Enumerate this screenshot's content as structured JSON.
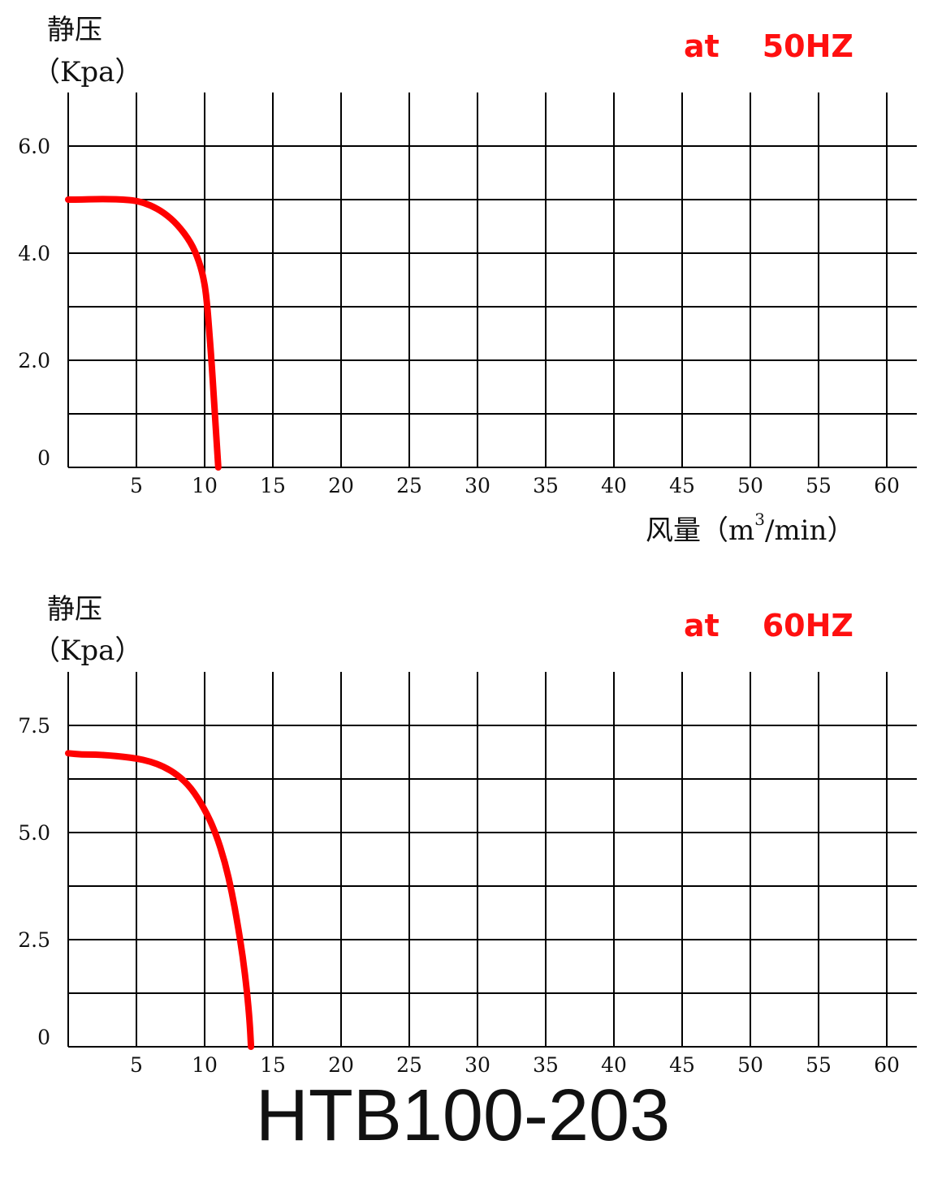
{
  "chart_data": [
    {
      "type": "line",
      "ytitle_line1": "静压",
      "ytitle_line2": "（Kpa）",
      "frequency": "at    50HZ",
      "xlabel_text": "风量（m",
      "xlabel_sup": "3",
      "xlabel_tail": "/min）",
      "x_ticks": [
        "5",
        "10",
        "15",
        "20",
        "25",
        "30",
        "35",
        "40",
        "45",
        "50",
        "55",
        "60"
      ],
      "y_ticks": [
        {
          "label": "6.0",
          "value": 6.0
        },
        {
          "label": "4.0",
          "value": 4.0
        },
        {
          "label": "2.0",
          "value": 2.0
        },
        {
          "label": "0",
          "value": 0
        }
      ],
      "xlim": [
        0,
        62
      ],
      "ylim": [
        0,
        7
      ],
      "series": [
        {
          "color": "#ff0000",
          "x": [
            0,
            1,
            2,
            3,
            4,
            5,
            6,
            7,
            8,
            9,
            9.6,
            10.0,
            10.2,
            10.35,
            10.5,
            10.65,
            10.8,
            11.0
          ],
          "y": [
            5.0,
            5.0,
            5.01,
            5.01,
            5.0,
            4.98,
            4.9,
            4.76,
            4.54,
            4.2,
            3.85,
            3.45,
            3.0,
            2.5,
            2.0,
            1.4,
            0.8,
            0.0
          ]
        }
      ]
    },
    {
      "type": "line",
      "ytitle_line1": "静压",
      "ytitle_line2": "（Kpa）",
      "frequency": "at    60HZ",
      "x_ticks": [
        "5",
        "10",
        "15",
        "20",
        "25",
        "30",
        "35",
        "40",
        "45",
        "50",
        "55",
        "60"
      ],
      "y_ticks": [
        {
          "label": "7.5",
          "value": 7.5
        },
        {
          "label": "5.0",
          "value": 5.0
        },
        {
          "label": "2.5",
          "value": 2.5
        },
        {
          "label": "0",
          "value": 0
        }
      ],
      "xlim": [
        0,
        62
      ],
      "ylim": [
        0,
        8.75
      ],
      "series": [
        {
          "color": "#ff0000",
          "x": [
            0,
            1,
            2,
            3,
            4,
            5,
            6,
            7,
            8,
            9,
            10,
            10.8,
            11.5,
            12.0,
            12.4,
            12.8,
            13.1,
            13.3,
            13.4
          ],
          "y": [
            6.85,
            6.82,
            6.82,
            6.8,
            6.77,
            6.73,
            6.66,
            6.54,
            6.35,
            6.05,
            5.55,
            5.0,
            4.3,
            3.6,
            2.9,
            2.1,
            1.3,
            0.6,
            0.0
          ]
        }
      ]
    }
  ],
  "model": "HTB100-203"
}
